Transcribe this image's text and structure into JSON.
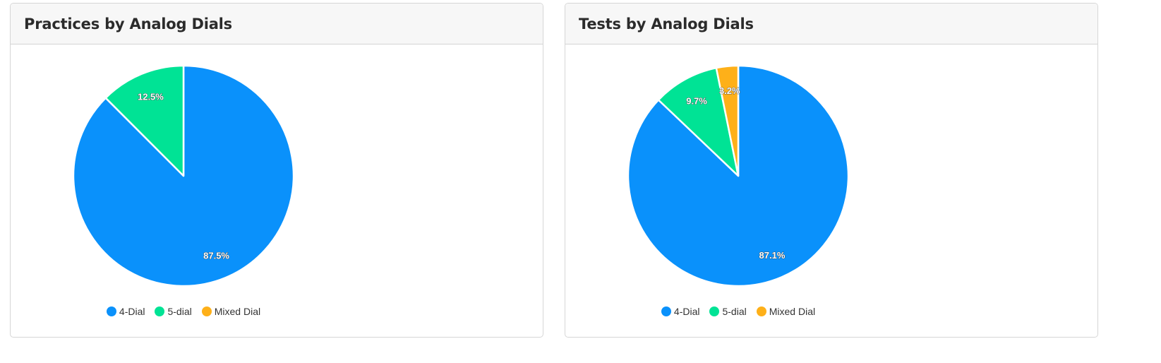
{
  "charts": [
    {
      "title": "Practices by Analog Dials",
      "chart_data": {
        "type": "pie",
        "title": "Practices by Analog Dials",
        "legend_placement": "bottom",
        "categories": [
          "4-Dial",
          "5-dial",
          "Mixed Dial"
        ],
        "values": [
          87.5,
          12.5,
          0
        ],
        "labels": [
          "87.5%",
          "12.5%",
          ""
        ],
        "colors": [
          "#0a91fb",
          "#00e395",
          "#feb019"
        ]
      }
    },
    {
      "title": "Tests by Analog Dials",
      "chart_data": {
        "type": "pie",
        "title": "Tests by Analog Dials",
        "legend_placement": "bottom",
        "categories": [
          "4-Dial",
          "5-dial",
          "Mixed Dial"
        ],
        "values": [
          87.1,
          9.7,
          3.2
        ],
        "labels": [
          "87.1%",
          "9.7%",
          "3.2%"
        ],
        "colors": [
          "#0a91fb",
          "#00e395",
          "#feb019"
        ]
      }
    }
  ]
}
